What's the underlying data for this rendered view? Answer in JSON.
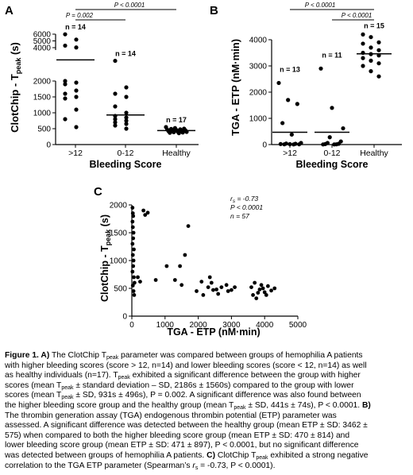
{
  "panels": {
    "A": {
      "letter": "A",
      "ylabel": "ClotChip - T",
      "ylabel_sub": "peak",
      "ylabel_suffix": " (s)",
      "xlabel": "Bleeding Score",
      "sig": [
        {
          "text": "P < 0.0001"
        },
        {
          "text": "P = 0.002"
        }
      ],
      "groups": [
        {
          "name": ">12",
          "n_label": "n = 14"
        },
        {
          "name": "0-12",
          "n_label": "n = 14"
        },
        {
          "name": "Healthy",
          "n_label": "n = 17"
        }
      ],
      "yticks": [
        "0",
        "500",
        "1000",
        "1500",
        "2000",
        "4000",
        "5000",
        "6000"
      ]
    },
    "B": {
      "letter": "B",
      "ylabel": "TGA - ETP (nM·min)",
      "xlabel": "Bleeding Score",
      "sig": [
        {
          "text": "P < 0.0001"
        },
        {
          "text": "P < 0.0001"
        }
      ],
      "groups": [
        {
          "name": ">12",
          "n_label": "n = 13"
        },
        {
          "name": "0-12",
          "n_label": "n = 11"
        },
        {
          "name": "Healthy",
          "n_label": "n = 15"
        }
      ],
      "yticks": [
        "0",
        "1000",
        "2000",
        "3000",
        "4000"
      ]
    },
    "C": {
      "letter": "C",
      "ylabel": "ClotChip - T",
      "ylabel_sub": "peak",
      "ylabel_suffix": " (s)",
      "xlabel": "TGA - ETP (nM·min)",
      "stats": {
        "rs": "r",
        "rs_sub": "s",
        "rs_value": " = -0.73",
        "p": "P",
        "p_value": " < 0.0001",
        "n": "n",
        "n_value": " = 57"
      },
      "xticks": [
        "0",
        "1000",
        "2000",
        "3000",
        "4000",
        "5000"
      ],
      "yticks": [
        "0",
        "500",
        "1000",
        "1500",
        "2000"
      ]
    }
  },
  "chart_data": [
    {
      "type": "scatter",
      "title": "A",
      "xlabel": "Bleeding Score",
      "ylabel": "ClotChip - Tpeak (s)",
      "axis_break": [
        2000,
        4000
      ],
      "categories": [
        ">12",
        "0-12",
        "Healthy"
      ],
      "means": [
        2186,
        931,
        441
      ],
      "series": [
        {
          "name": ">12",
          "values": [
            5980,
            5200,
            4300,
            4030,
            2000,
            1950,
            1900,
            1700,
            1600,
            1500,
            1450,
            1100,
            800,
            550
          ]
        },
        {
          "name": "0-12",
          "values": [
            2050,
            1800,
            1600,
            1500,
            1200,
            1000,
            900,
            850,
            800,
            750,
            700,
            650,
            600,
            500
          ]
        },
        {
          "name": "Healthy",
          "values": [
            550,
            520,
            500,
            490,
            480,
            470,
            460,
            450,
            440,
            430,
            420,
            410,
            400,
            390,
            380,
            370,
            360
          ]
        }
      ]
    },
    {
      "type": "scatter",
      "title": "B",
      "xlabel": "Bleeding Score",
      "ylabel": "TGA - ETP (nM·min)",
      "ylim": [
        0,
        4200
      ],
      "categories": [
        ">12",
        "0-12",
        "Healthy"
      ],
      "means": [
        470,
        471,
        3462
      ],
      "series": [
        {
          "name": ">12",
          "values": [
            2350,
            1700,
            1550,
            820,
            380,
            60,
            40,
            30,
            20,
            15,
            10,
            10,
            5
          ]
        },
        {
          "name": "0-12",
          "values": [
            2900,
            1400,
            620,
            280,
            120,
            60,
            30,
            20,
            10,
            5,
            5
          ]
        },
        {
          "name": "Healthy",
          "values": [
            4200,
            4100,
            3900,
            3850,
            3700,
            3600,
            3500,
            3450,
            3400,
            3300,
            3200,
            3100,
            3000,
            2800,
            2600
          ]
        }
      ]
    },
    {
      "type": "scatter",
      "title": "C",
      "xlabel": "TGA - ETP (nM·min)",
      "ylabel": "ClotChip - Tpeak (s)",
      "xlim": [
        0,
        5000
      ],
      "ylim": [
        0,
        2000
      ],
      "series": [
        {
          "name": "points",
          "points": [
            [
              20,
              1950
            ],
            [
              30,
              1850
            ],
            [
              40,
              1800
            ],
            [
              20,
              1700
            ],
            [
              30,
              1600
            ],
            [
              50,
              1500
            ],
            [
              40,
              1400
            ],
            [
              20,
              1300
            ],
            [
              60,
              1200
            ],
            [
              30,
              1100
            ],
            [
              50,
              1000
            ],
            [
              40,
              900
            ],
            [
              20,
              800
            ],
            [
              60,
              700
            ],
            [
              80,
              600
            ],
            [
              30,
              550
            ],
            [
              50,
              450
            ],
            [
              70,
              380
            ],
            [
              350,
              1900
            ],
            [
              400,
              1820
            ],
            [
              480,
              1860
            ],
            [
              1700,
              1620
            ],
            [
              1600,
              1100
            ],
            [
              1050,
              900
            ],
            [
              1450,
              900
            ],
            [
              1300,
              650
            ],
            [
              1500,
              560
            ],
            [
              720,
              650
            ],
            [
              250,
              620
            ],
            [
              180,
              700
            ],
            [
              1950,
              450
            ],
            [
              2100,
              620
            ],
            [
              2150,
              380
            ],
            [
              2300,
              520
            ],
            [
              2350,
              700
            ],
            [
              2400,
              600
            ],
            [
              2550,
              480
            ],
            [
              2600,
              400
            ],
            [
              2700,
              520
            ],
            [
              2850,
              560
            ],
            [
              2900,
              450
            ],
            [
              3000,
              470
            ],
            [
              3100,
              520
            ],
            [
              2450,
              470
            ],
            [
              3600,
              520
            ],
            [
              3700,
              600
            ],
            [
              3750,
              320
            ],
            [
              3800,
              420
            ],
            [
              3850,
              480
            ],
            [
              3900,
              560
            ],
            [
              3950,
              500
            ],
            [
              4000,
              430
            ],
            [
              4050,
              380
            ],
            [
              4100,
              540
            ],
            [
              4200,
              460
            ],
            [
              4300,
              500
            ],
            [
              3650,
              380
            ]
          ]
        }
      ]
    }
  ],
  "caption": {
    "lines": [
      [
        {
          "b": "Figure 1. A)"
        },
        {
          "t": " The ClotChip T"
        },
        {
          "s": "peak"
        },
        {
          "t": " parameter was compared between groups of hemophilia A patients"
        }
      ],
      [
        {
          "t": "with higher bleeding scores (score > 12, n=14) and lower bleeding scores (score < 12, n=14) as well"
        }
      ],
      [
        {
          "t": "as healthy individuals (n=17). T"
        },
        {
          "s": "peak"
        },
        {
          "t": " exhibited a significant difference between the group with higher"
        }
      ],
      [
        {
          "t": "scores (mean T"
        },
        {
          "s": "peak"
        },
        {
          "t": " ± standard deviation – SD, 2186s ± 1560s) compared to the group with lower"
        }
      ],
      [
        {
          "t": "scores (mean T"
        },
        {
          "s": "peak"
        },
        {
          "t": " ± SD, 931s ± 496s), P = 0.002. A significant difference was also found between"
        }
      ],
      [
        {
          "t": "the higher bleeding score group and the healthy group (mean T"
        },
        {
          "s": "peak"
        },
        {
          "t": " ± SD, 441s ± 74s), P < 0.0001. "
        },
        {
          "b": "B)"
        }
      ],
      [
        {
          "t": "The thrombin generation assay (TGA) endogenous thrombin potential (ETP) parameter was"
        }
      ],
      [
        {
          "t": "assessed. A significant difference was detected between the healthy group (mean ETP ± SD: 3462 ±"
        }
      ],
      [
        {
          "t": "575) when compared to both the higher bleeding score group (mean ETP ± SD: 470 ± 814) and"
        }
      ],
      [
        {
          "t": "lower bleeding score group (mean ETP ± SD: 471 ± 897), P < 0.0001, but no significant difference"
        }
      ],
      [
        {
          "t": "was detected between groups of hemophilia A patients. "
        },
        {
          "b": "C)"
        },
        {
          "t": " ClotChip T"
        },
        {
          "s": "peak"
        },
        {
          "t": " exhibited a strong negative"
        }
      ],
      [
        {
          "t": "correlation to the TGA ETP parameter (Spearman’s "
        },
        {
          "i": "r"
        },
        {
          "s": "s"
        },
        {
          "t": " = -0.73, P < 0.0001)."
        }
      ]
    ]
  }
}
